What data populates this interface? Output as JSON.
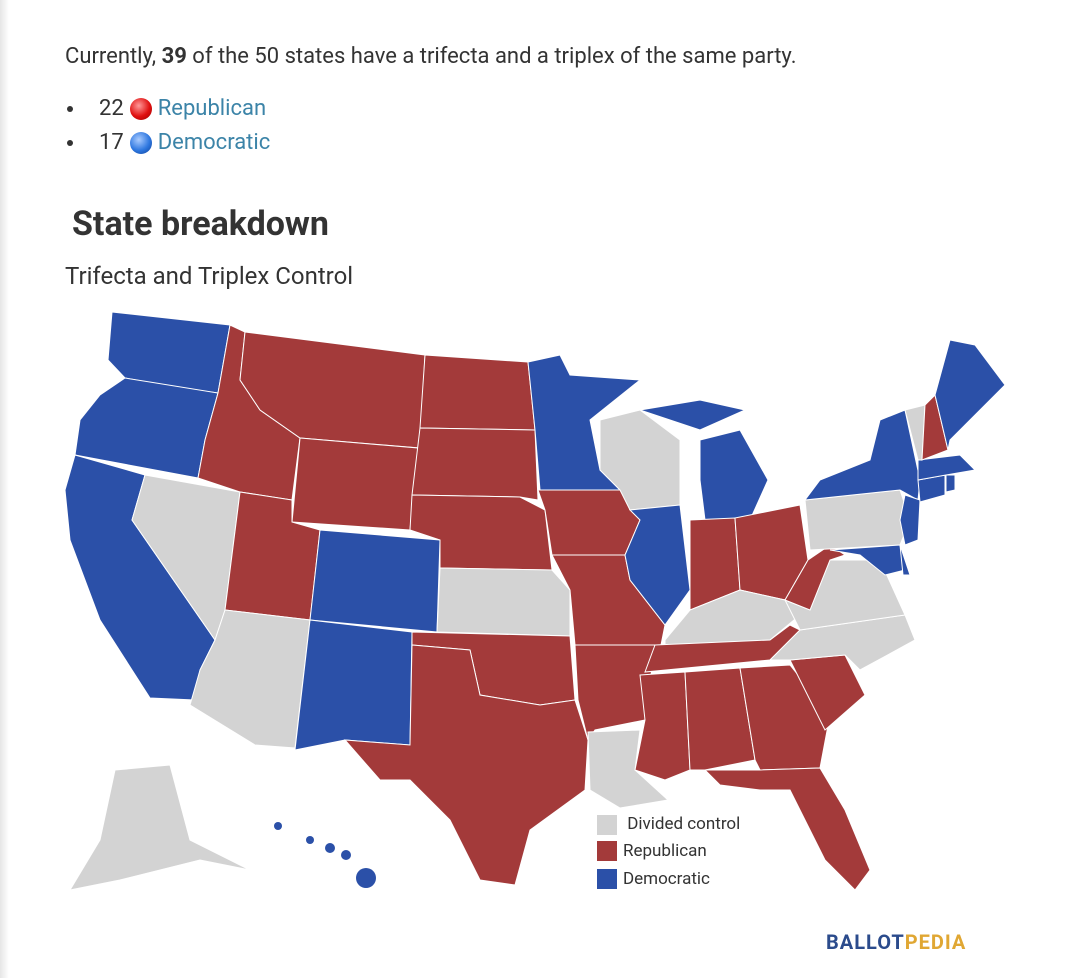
{
  "intro": {
    "before": "Currently,",
    "count": 39,
    "after": "of the 50 states have a trifecta and a triplex of the same party."
  },
  "bullets": [
    {
      "count": 22,
      "label": "Republican"
    },
    {
      "count": 17,
      "label": "Democratic"
    }
  ],
  "heading": "State breakdown",
  "subtitle": "Trifecta and Triplex Control",
  "legend": [
    {
      "label": "Divided control",
      "color": "#d3d3d3"
    },
    {
      "label": "Republican",
      "color": "#a33a3a"
    },
    {
      "label": "Democratic",
      "color": "#2b50a8"
    }
  ],
  "logo": {
    "first": "BALLOT",
    "second": "PEDIA"
  }
}
